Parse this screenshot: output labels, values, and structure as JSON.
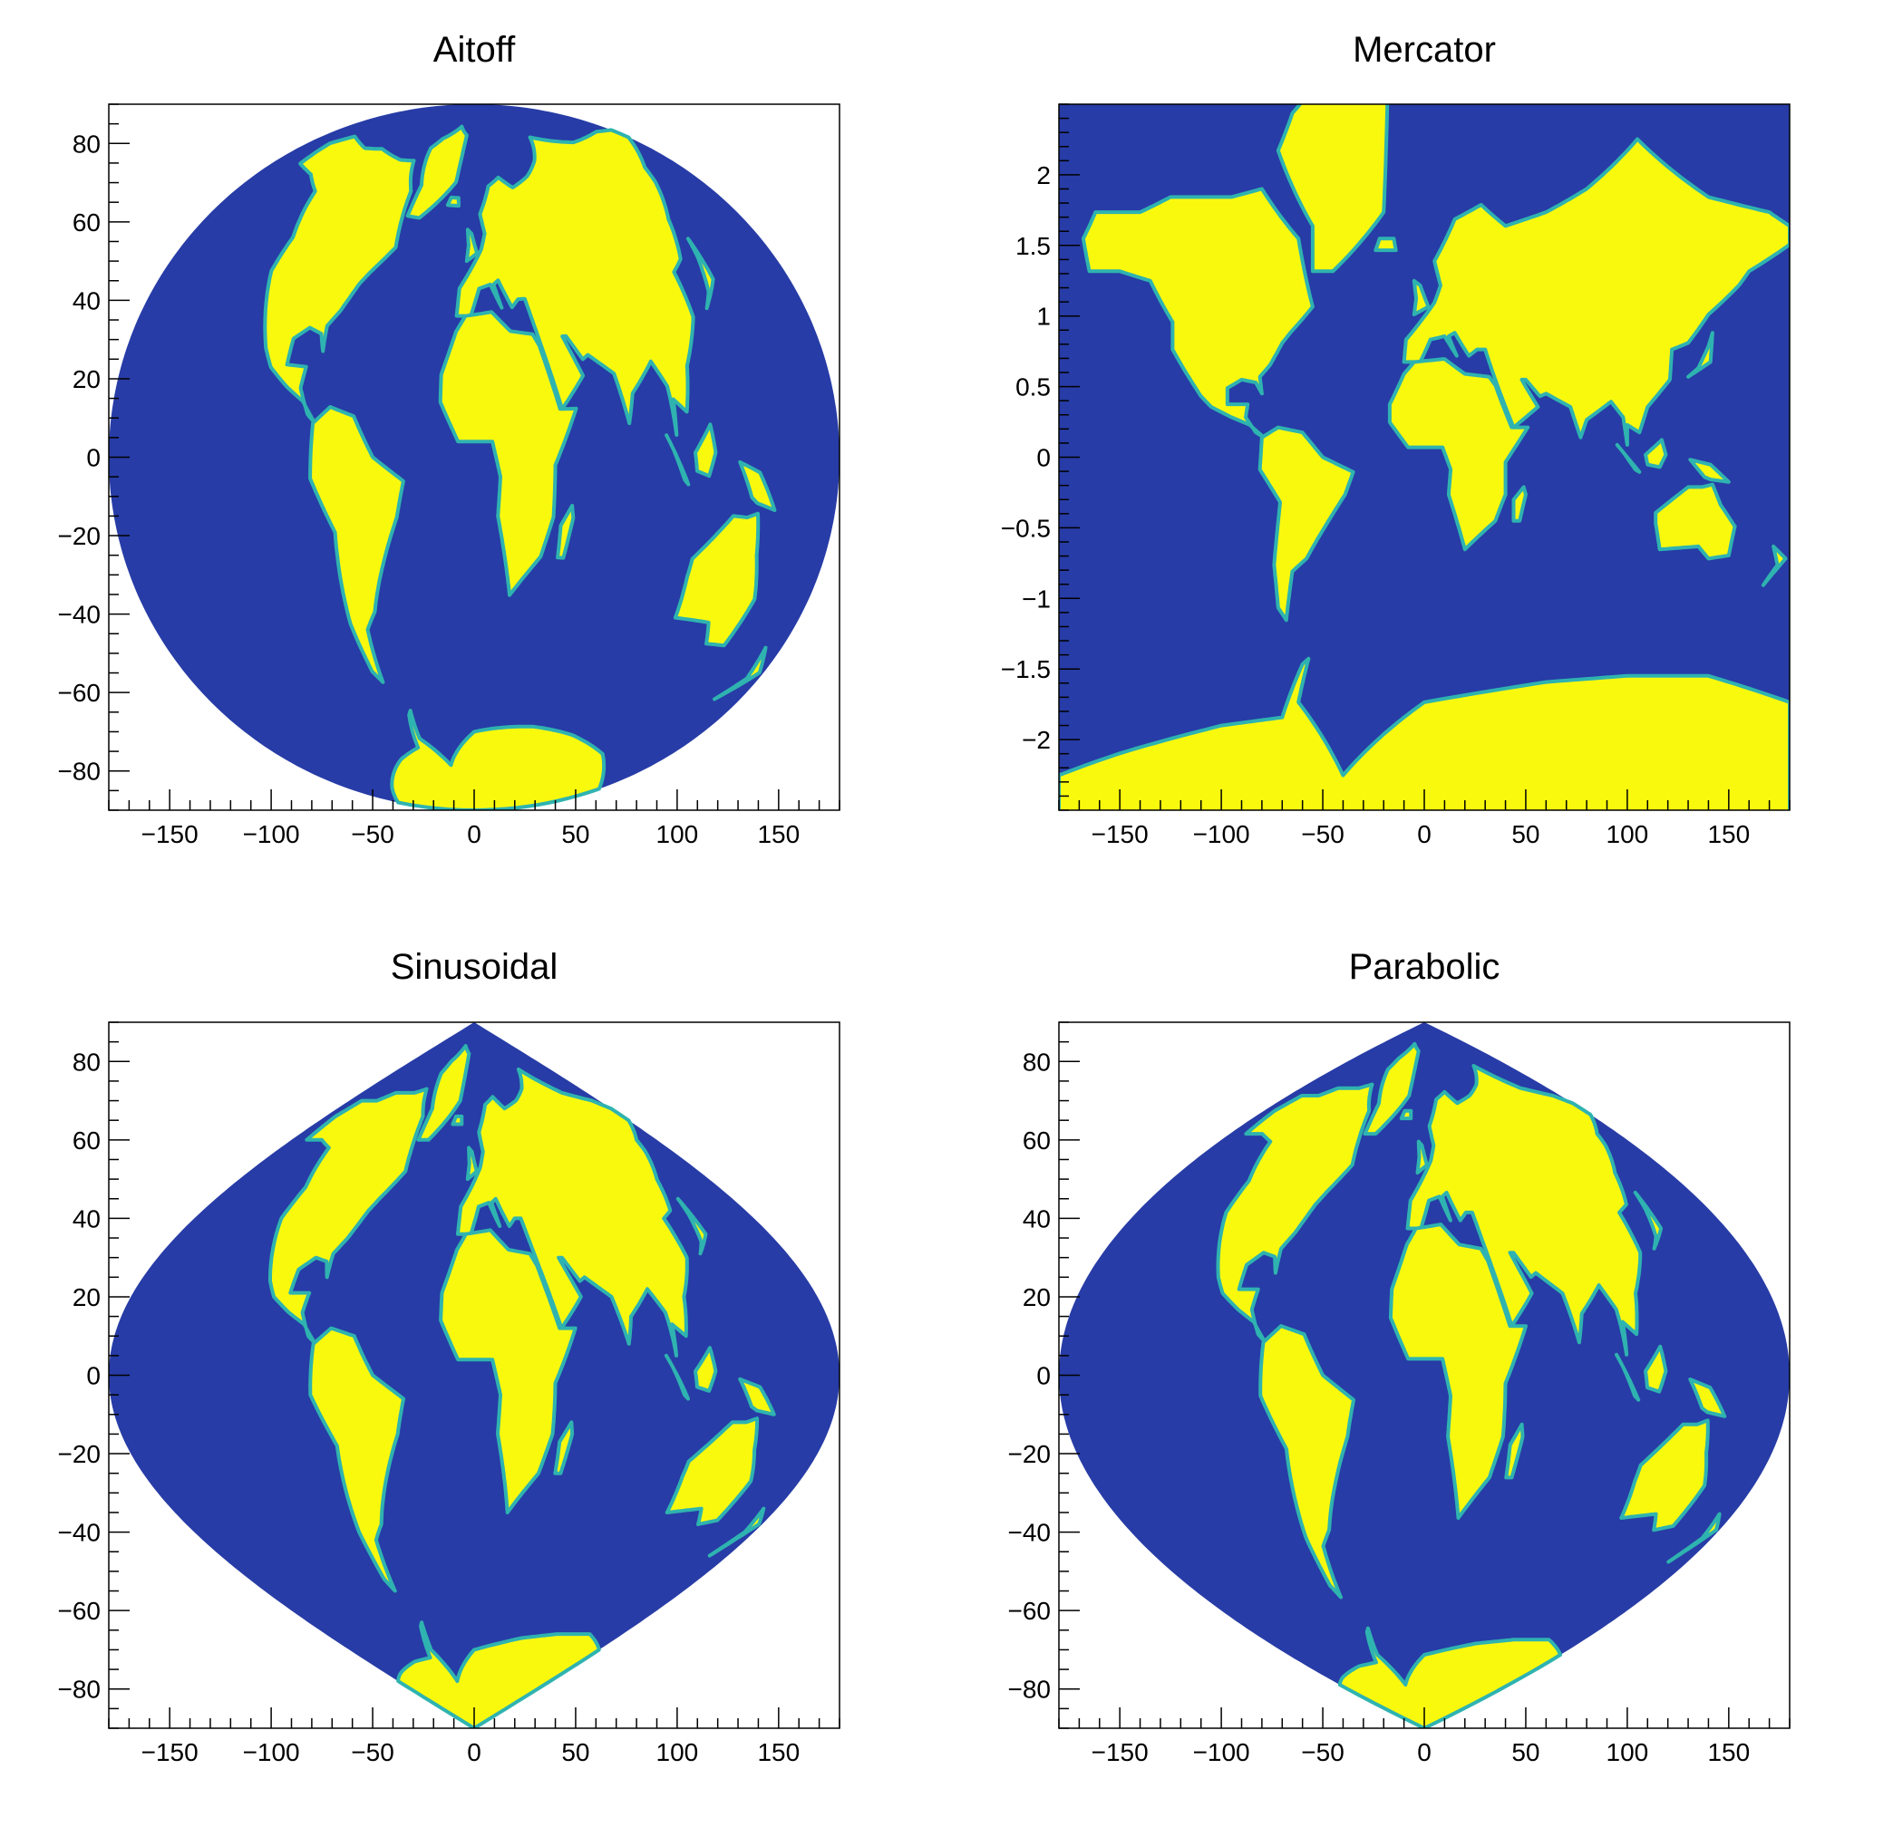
{
  "colors": {
    "ocean": "#273ca6",
    "land": "#f9f90e",
    "coast": "#2fb3b0",
    "background": "#ffffff"
  },
  "chart_data": [
    {
      "type": "heatmap",
      "title": "Aitoff",
      "projection": "aitoff",
      "xlim": [
        -180,
        180
      ],
      "ylim": [
        -90,
        90
      ],
      "x_ticks": [
        -150,
        -100,
        -50,
        0,
        50,
        100,
        150
      ],
      "x_tick_labels": [
        "−150",
        "−100",
        "−50",
        "0",
        "50",
        "100",
        "150"
      ],
      "x_minor_step": 10,
      "y_ticks": [
        -80,
        -60,
        -40,
        -20,
        0,
        20,
        40,
        60,
        80
      ],
      "y_tick_labels": [
        "−80",
        "−60",
        "−40",
        "−20",
        "0",
        "20",
        "40",
        "60",
        "80"
      ],
      "y_minor_step": 5
    },
    {
      "type": "heatmap",
      "title": "Mercator",
      "projection": "mercator",
      "xlim": [
        -180,
        180
      ],
      "ylim": [
        -2.5,
        2.5
      ],
      "x_ticks": [
        -150,
        -100,
        -50,
        0,
        50,
        100,
        150
      ],
      "x_tick_labels": [
        "−150",
        "−100",
        "−50",
        "0",
        "50",
        "100",
        "150"
      ],
      "x_minor_step": 10,
      "y_ticks": [
        -2,
        -1.5,
        -1,
        -0.5,
        0,
        0.5,
        1,
        1.5,
        2
      ],
      "y_tick_labels": [
        "−2",
        "−1.5",
        "−1",
        "−0.5",
        "0",
        "0.5",
        "1",
        "1.5",
        "2"
      ],
      "y_minor_step": 0.1
    },
    {
      "type": "heatmap",
      "title": "Sinusoidal",
      "projection": "sinusoidal",
      "xlim": [
        -180,
        180
      ],
      "ylim": [
        -90,
        90
      ],
      "x_ticks": [
        -150,
        -100,
        -50,
        0,
        50,
        100,
        150
      ],
      "x_tick_labels": [
        "−150",
        "−100",
        "−50",
        "0",
        "50",
        "100",
        "150"
      ],
      "x_minor_step": 10,
      "y_ticks": [
        -80,
        -60,
        -40,
        -20,
        0,
        20,
        40,
        60,
        80
      ],
      "y_tick_labels": [
        "−80",
        "−60",
        "−40",
        "−20",
        "0",
        "20",
        "40",
        "60",
        "80"
      ],
      "y_minor_step": 5
    },
    {
      "type": "heatmap",
      "title": "Parabolic",
      "projection": "parabolic",
      "xlim": [
        -180,
        180
      ],
      "ylim": [
        -90,
        90
      ],
      "x_ticks": [
        -150,
        -100,
        -50,
        0,
        50,
        100,
        150
      ],
      "x_tick_labels": [
        "−150",
        "−100",
        "−50",
        "0",
        "50",
        "100",
        "150"
      ],
      "x_minor_step": 10,
      "y_ticks": [
        -80,
        -60,
        -40,
        -20,
        0,
        20,
        40,
        60,
        80
      ],
      "y_tick_labels": [
        "−80",
        "−60",
        "−40",
        "−20",
        "0",
        "20",
        "40",
        "60",
        "80"
      ],
      "y_minor_step": 5
    }
  ]
}
